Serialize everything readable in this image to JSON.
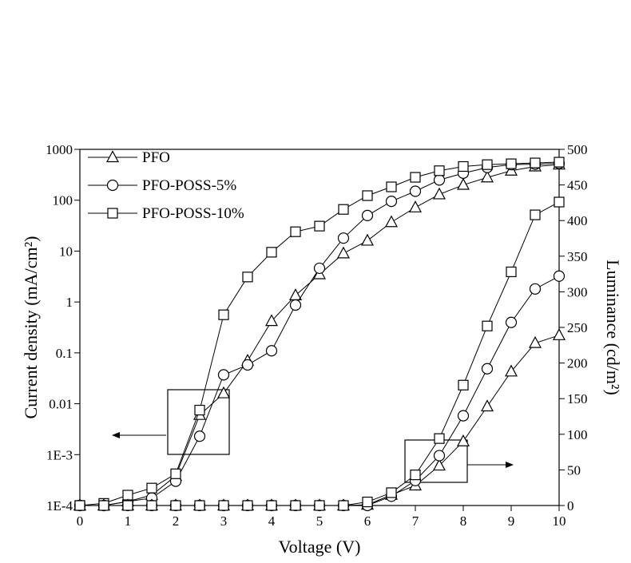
{
  "chart_data": {
    "type": "line",
    "x_label": "Voltage (V)",
    "y_label": "Current density (mA/cm²)",
    "y2_label": "Luminance (cd/m²)",
    "xlim": [
      0,
      10
    ],
    "xticks": [
      0,
      1,
      2,
      3,
      4,
      5,
      6,
      7,
      8,
      9,
      10
    ],
    "ylog": true,
    "ylim": [
      0.0001,
      1000
    ],
    "yticks": [
      {
        "value": 0.0001,
        "label": "1E-4"
      },
      {
        "value": 0.001,
        "label": "1E-3"
      },
      0.01,
      0.1,
      1,
      10,
      100,
      1000
    ],
    "y2lim": [
      0,
      500
    ],
    "y2ticks": [
      0,
      50,
      100,
      150,
      200,
      250,
      300,
      350,
      400,
      450,
      500
    ],
    "x": [
      0,
      0.5,
      1,
      1.5,
      2,
      2.5,
      3,
      3.5,
      4,
      4.5,
      5,
      5.5,
      6,
      6.5,
      7,
      7.5,
      8,
      8.5,
      9,
      9.5,
      10
    ],
    "series": [
      {
        "name": "PFO",
        "marker": "triangle",
        "color": "#000000",
        "values": [
          0.0001,
          0.0001,
          0.00012,
          0.00016,
          0.00038,
          0.006,
          0.016,
          0.07,
          0.42,
          1.35,
          3.5,
          9,
          16,
          37,
          72,
          130,
          200,
          280,
          380,
          460,
          500
        ]
      },
      {
        "name": "PFO-POSS-5%",
        "marker": "circle",
        "color": "#000000",
        "values": [
          0.0001,
          0.0001,
          0.00012,
          0.00014,
          0.0003,
          0.0023,
          0.037,
          0.058,
          0.11,
          0.87,
          4.6,
          18,
          50,
          95,
          150,
          250,
          340,
          440,
          500,
          510,
          530
        ]
      },
      {
        "name": "PFO-POSS-10%",
        "marker": "square",
        "color": "#000000",
        "values": [
          0.0001,
          0.00011,
          0.00016,
          0.00022,
          0.00042,
          0.0075,
          0.56,
          3.1,
          9.5,
          24,
          31,
          66,
          123,
          183,
          282,
          380,
          460,
          500,
          520,
          540,
          560
        ]
      },
      {
        "marker": "triangle",
        "axis": "y2",
        "color": "#000000",
        "values": [
          0,
          0,
          0,
          0,
          0,
          0,
          0,
          0,
          0,
          0,
          0,
          0,
          1,
          15,
          28,
          56,
          90,
          139,
          188,
          228,
          239
        ]
      },
      {
        "marker": "circle",
        "axis": "y2",
        "color": "#000000",
        "values": [
          0,
          0,
          0,
          0,
          0,
          0,
          0,
          0,
          0,
          0,
          0,
          0,
          0,
          13,
          35,
          70,
          126,
          192,
          257,
          304,
          322
        ]
      },
      {
        "marker": "square",
        "axis": "y2",
        "color": "#000000",
        "values": [
          0,
          0,
          0,
          0,
          0,
          0,
          0,
          0,
          0,
          0,
          0,
          0,
          5,
          18,
          43,
          94,
          169,
          252,
          328,
          408,
          426
        ]
      }
    ]
  }
}
